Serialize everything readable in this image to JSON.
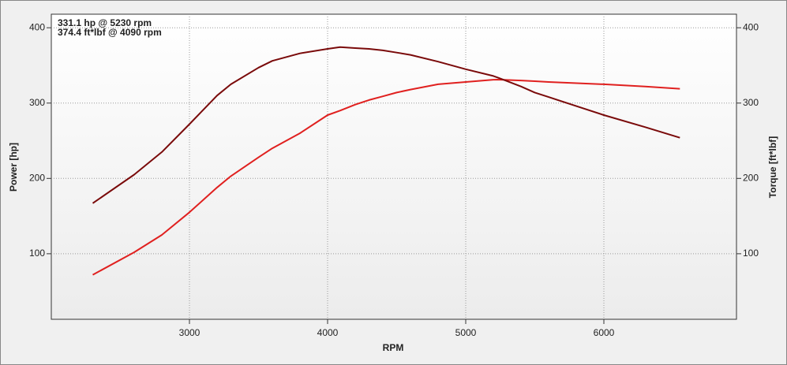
{
  "chart_data": {
    "type": "line",
    "xlabel": "RPM",
    "ylabel": "Power [hp]",
    "y2label": "Torque [ft*lbf]",
    "annotations": [
      {
        "text": "331.1 hp @ 5230 rpm",
        "color": "#e0201f"
      },
      {
        "text": "374.4 ft*lbf @ 4090 rpm",
        "color": "#7a0a0a"
      }
    ],
    "x": [
      2300,
      2600,
      2800,
      3000,
      3200,
      3300,
      3500,
      3600,
      3800,
      4000,
      4090,
      4200,
      4300,
      4400,
      4500,
      4600,
      4800,
      5000,
      5200,
      5230,
      5400,
      5500,
      5600,
      6000,
      6300,
      6550
    ],
    "series": [
      {
        "color": "#e0201f",
        "axis": "y",
        "values": [
          72,
          102,
          125,
          155,
          188,
          203,
          228,
          240,
          260,
          284,
          290,
          298,
          304,
          309,
          314,
          318,
          325,
          328,
          331,
          331.1,
          330,
          329,
          328,
          325,
          322,
          319
        ]
      },
      {
        "color": "#7a0a0a",
        "axis": "y2",
        "values": [
          167,
          205,
          235,
          272,
          310,
          325,
          347,
          356,
          366,
          372,
          374.4,
          373,
          372,
          370,
          367,
          364,
          355,
          345,
          336,
          334,
          322,
          314,
          308,
          284,
          268,
          254
        ]
      }
    ],
    "xlim": [
      2000,
      6960
    ],
    "ylim": [
      13,
      418
    ],
    "y2lim": [
      13,
      418
    ],
    "xticks": [
      3000,
      4000,
      5000,
      6000
    ],
    "yticks": [
      100,
      200,
      300,
      400
    ],
    "y2ticks": [
      100,
      200,
      300,
      400
    ],
    "grid": true
  }
}
